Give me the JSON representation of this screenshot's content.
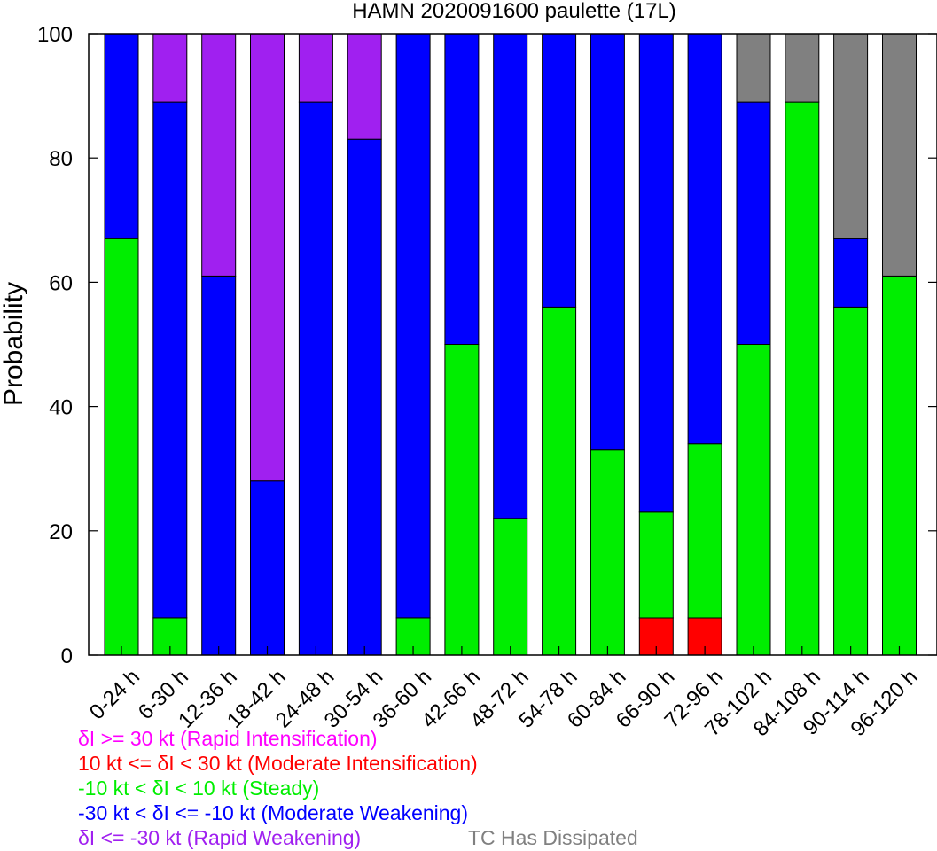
{
  "chart_data": {
    "type": "bar",
    "stacked": true,
    "title": "HAMN 2020091600 paulette (17L)",
    "ylabel": "Probability",
    "xlabel": "",
    "ylim": [
      0,
      100
    ],
    "yticks": [
      "0",
      "20",
      "40",
      "60",
      "80",
      "100"
    ],
    "grid": false,
    "categories": [
      "0-24 h",
      "6-30 h",
      "12-36 h",
      "18-42 h",
      "24-48 h",
      "30-54 h",
      "36-60 h",
      "42-66 h",
      "48-72 h",
      "54-78 h",
      "60-84 h",
      "66-90 h",
      "72-96 h",
      "78-102 h",
      "84-108 h",
      "90-114 h",
      "96-120 h"
    ],
    "series": [
      {
        "name": "δI >= 30 kt (Rapid Intensification)",
        "color": "#ff00ff",
        "values": [
          0,
          0,
          0,
          0,
          0,
          0,
          0,
          0,
          0,
          0,
          0,
          0,
          0,
          0,
          0,
          0,
          0
        ]
      },
      {
        "name": "10 kt <= δI < 30 kt (Moderate Intensification)",
        "color": "#ff0000",
        "values": [
          0,
          0,
          0,
          0,
          0,
          0,
          0,
          0,
          0,
          0,
          0,
          6,
          6,
          0,
          0,
          0,
          0
        ]
      },
      {
        "name": "-10 kt < δI < 10 kt (Steady)",
        "color": "#00ee00",
        "values": [
          67,
          6,
          0,
          0,
          0,
          0,
          6,
          50,
          22,
          56,
          33,
          17,
          28,
          50,
          89,
          56,
          61
        ]
      },
      {
        "name": "-30 kt < δI <= -10 kt (Moderate Weakening)",
        "color": "#0000ff",
        "values": [
          33,
          83,
          61,
          28,
          89,
          83,
          94,
          50,
          78,
          44,
          67,
          77,
          66,
          39,
          0,
          11,
          0
        ]
      },
      {
        "name": "δI <= -30 kt (Rapid Weakening)",
        "color": "#a020f0",
        "values": [
          0,
          11,
          39,
          72,
          11,
          17,
          0,
          0,
          0,
          0,
          0,
          0,
          0,
          0,
          0,
          0,
          0
        ]
      },
      {
        "name": "TC Has Dissipated",
        "color": "#808080",
        "values": [
          0,
          0,
          0,
          0,
          0,
          0,
          0,
          0,
          0,
          0,
          0,
          0,
          0,
          11,
          11,
          33,
          39
        ]
      }
    ],
    "legend_position": "bottom"
  },
  "legend": [
    {
      "text": "δI >= 30 kt (Rapid Intensification)",
      "color": "#ff00ff"
    },
    {
      "text": "10 kt <= δI < 30 kt (Moderate Intensification)",
      "color": "#ff0000"
    },
    {
      "text": "-10 kt < δI < 10 kt (Steady)",
      "color": "#00ee00"
    },
    {
      "text": "-30 kt < δI <= -10 kt (Moderate Weakening)",
      "color": "#0000ff"
    },
    {
      "text": "δI <= -30 kt (Rapid Weakening)",
      "color": "#a020f0"
    },
    {
      "text": "TC Has Dissipated",
      "color": "#808080"
    }
  ]
}
